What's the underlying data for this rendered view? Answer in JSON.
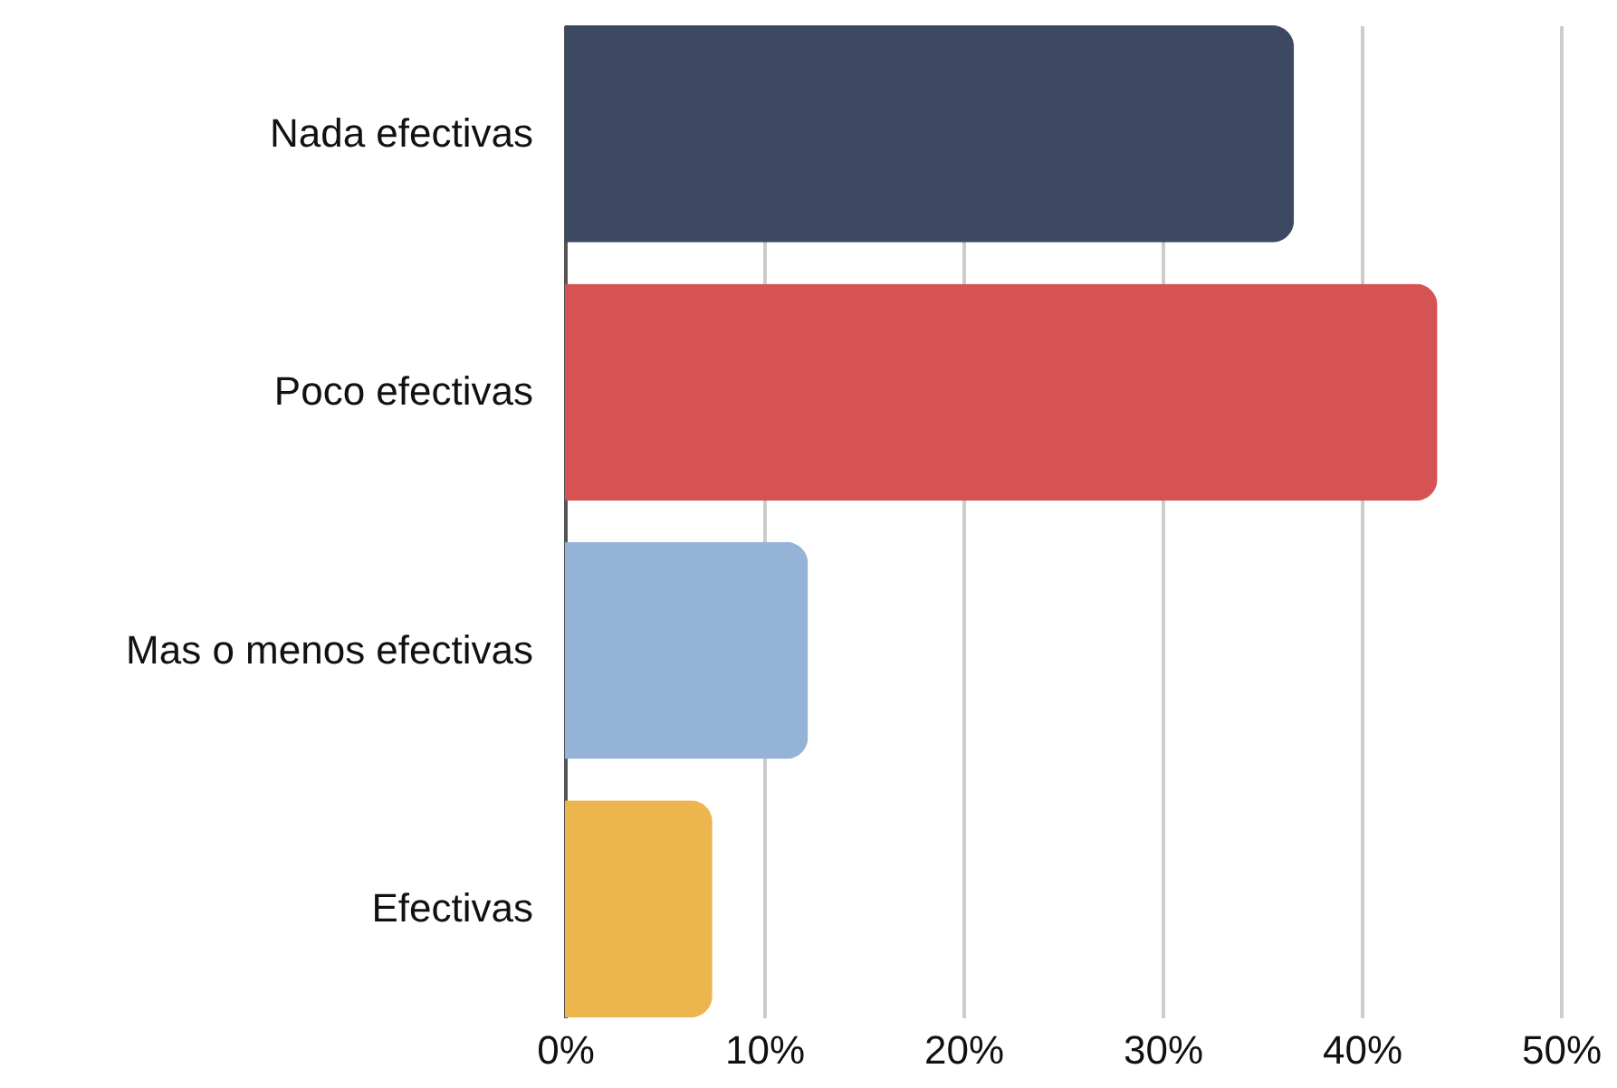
{
  "chart_data": {
    "type": "bar",
    "orientation": "horizontal",
    "categories": [
      "Nada efectivas",
      "Poco efectivas",
      "Mas o menos efectivas",
      "Efectivas"
    ],
    "values": [
      36.6,
      43.8,
      12.2,
      7.4
    ],
    "colors": [
      "#3d4863",
      "#d65353",
      "#95b2d7",
      "#edb54e"
    ],
    "xlim": [
      0,
      50
    ],
    "xticks": [
      {
        "value": 0,
        "label": "0%"
      },
      {
        "value": 10,
        "label": "10%"
      },
      {
        "value": 20,
        "label": "20%"
      },
      {
        "value": 30,
        "label": "30%"
      },
      {
        "value": 40,
        "label": "40%"
      },
      {
        "value": 50,
        "label": "50%"
      }
    ],
    "grid": "x"
  }
}
